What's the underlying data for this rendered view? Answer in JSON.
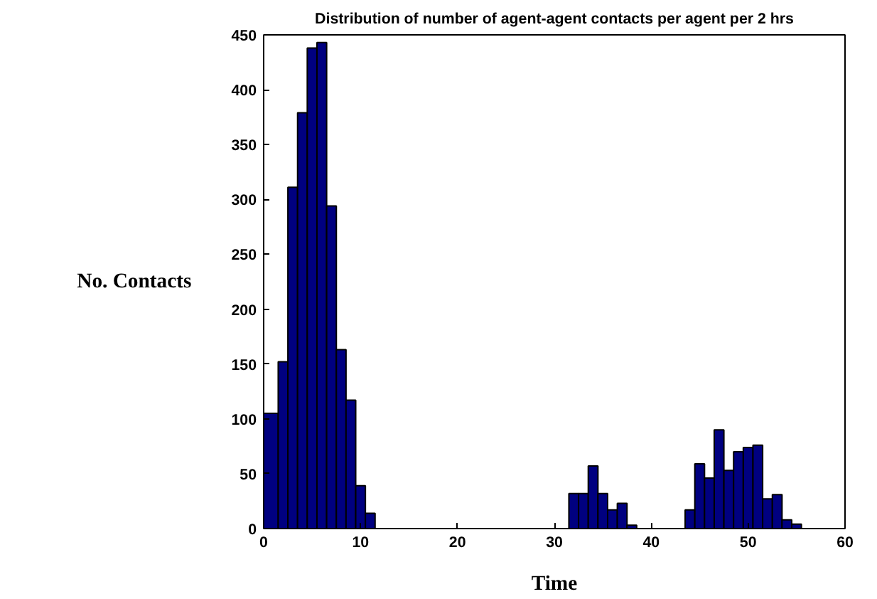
{
  "chart_data": {
    "type": "histogram",
    "title": "Distribution of number of agent-agent contacts per agent per 2 hrs",
    "xlabel": "Time",
    "ylabel": "No. Contacts",
    "bins": [
      0,
      1.5,
      2.5,
      3.5,
      4.5,
      5.5,
      6.5,
      7.5,
      8.5,
      9.5,
      10.5,
      11.5,
      12.5,
      13.5,
      14.5,
      15.5,
      16.5,
      17.5,
      18.5,
      19.5,
      20.5,
      21.5,
      22.5,
      23.5,
      24.5,
      25.5,
      26.5,
      27.5,
      28.5,
      29.5,
      30.5,
      31.5,
      32.5,
      33.5,
      34.5,
      35.5,
      36.5,
      37.5,
      38.5,
      39.5,
      40.5,
      41.5,
      42.5,
      43.5,
      44.5,
      45.5,
      46.5,
      47.5,
      48.5,
      49.5,
      50.5,
      51.5,
      52.5,
      53.5,
      54.5,
      55.5
    ],
    "values": [
      105,
      152,
      311,
      379,
      438,
      443,
      294,
      163,
      117,
      39,
      14,
      0,
      0,
      0,
      0,
      0,
      0,
      0,
      0,
      0,
      0,
      0,
      0,
      0,
      0,
      0,
      0,
      0,
      0,
      0,
      0,
      32,
      32,
      57,
      32,
      17,
      23,
      3,
      0,
      0,
      0,
      0,
      0,
      17,
      59,
      46,
      90,
      53,
      70,
      74,
      76,
      27,
      31,
      8,
      4
    ],
    "color": "#000080",
    "xlim": [
      0,
      60
    ],
    "ylim": [
      0,
      450
    ],
    "xticks": [
      0,
      10,
      20,
      30,
      40,
      50,
      60
    ],
    "yticks": [
      0,
      50,
      100,
      150,
      200,
      250,
      300,
      350,
      400,
      450
    ],
    "grid": false
  }
}
